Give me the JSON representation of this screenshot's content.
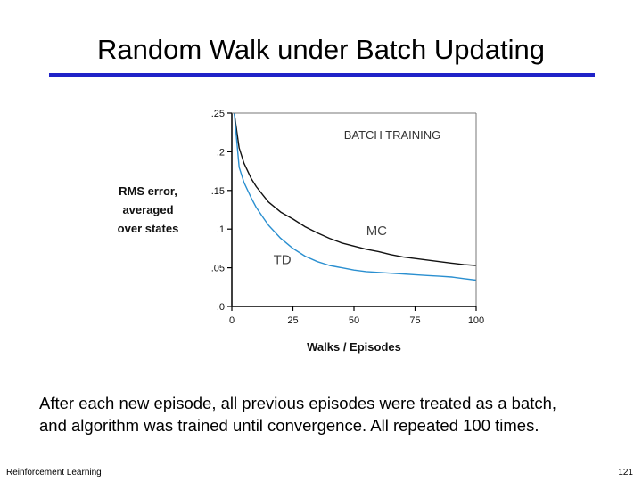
{
  "slide": {
    "title": "Random Walk under Batch Updating",
    "caption_line1": "After each new episode, all previous episodes were treated as a batch,",
    "caption_line2": "and algorithm was trained until convergence. All repeated 100 times.",
    "footer_left": "Reinforcement Learning",
    "page_number": "121",
    "accent_color": "#1f22c8"
  },
  "chart_data": {
    "type": "line",
    "title": "BATCH TRAINING",
    "xlabel": "Walks / Episodes",
    "ylabel_lines": [
      "RMS error,",
      "averaged",
      "over states"
    ],
    "xlim": [
      0,
      100
    ],
    "ylim": [
      0,
      0.25
    ],
    "x_ticks": [
      0,
      25,
      50,
      75,
      100
    ],
    "x_tick_labels": [
      "0",
      "25",
      "50",
      "75",
      "100"
    ],
    "y_ticks": [
      0,
      0.05,
      0.1,
      0.15,
      0.2,
      0.25
    ],
    "y_tick_labels": [
      ".0",
      ".05",
      ".1",
      ".15",
      ".2",
      ".25"
    ],
    "grid": false,
    "series": [
      {
        "name": "MC",
        "color": "#111111",
        "x": [
          1,
          3,
          5,
          8,
          10,
          13,
          15,
          20,
          25,
          30,
          35,
          40,
          45,
          50,
          55,
          60,
          65,
          70,
          75,
          80,
          85,
          90,
          95,
          100
        ],
        "y": [
          0.25,
          0.205,
          0.185,
          0.165,
          0.155,
          0.143,
          0.135,
          0.122,
          0.113,
          0.103,
          0.095,
          0.088,
          0.082,
          0.078,
          0.074,
          0.071,
          0.067,
          0.064,
          0.062,
          0.06,
          0.058,
          0.056,
          0.054,
          0.053
        ]
      },
      {
        "name": "TD",
        "color": "#2a8fd0",
        "x": [
          1,
          3,
          5,
          8,
          10,
          13,
          15,
          20,
          25,
          30,
          35,
          40,
          45,
          50,
          55,
          60,
          65,
          70,
          75,
          80,
          85,
          90,
          95,
          100
        ],
        "y": [
          0.25,
          0.18,
          0.16,
          0.14,
          0.128,
          0.114,
          0.105,
          0.088,
          0.075,
          0.065,
          0.058,
          0.053,
          0.05,
          0.047,
          0.045,
          0.044,
          0.043,
          0.042,
          0.041,
          0.04,
          0.039,
          0.038,
          0.036,
          0.034
        ]
      }
    ],
    "annotations": [
      {
        "text": "MC",
        "x": 55,
        "y": 0.092
      },
      {
        "text": "TD",
        "x": 17,
        "y": 0.055
      }
    ]
  }
}
